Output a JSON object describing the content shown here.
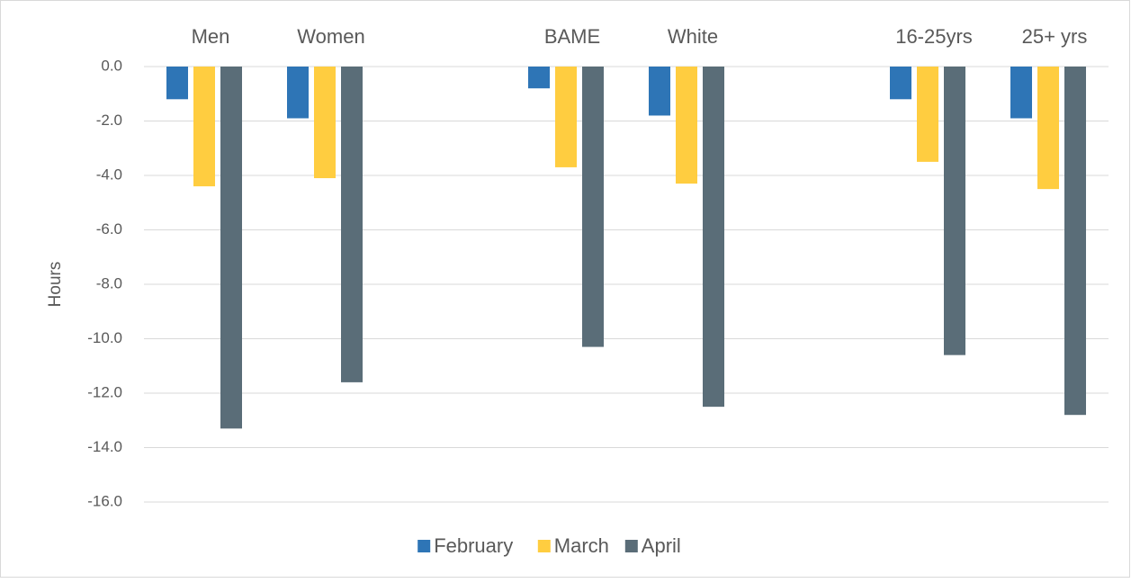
{
  "chart_data": {
    "type": "bar",
    "categories": [
      "Men",
      "Women",
      null,
      "BAME",
      "White",
      null,
      "16-25yrs",
      "25+ yrs"
    ],
    "series": [
      {
        "name": "February",
        "color": "#2e75b6",
        "values": [
          -1.2,
          -1.9,
          null,
          -0.8,
          -1.8,
          null,
          -1.2,
          -1.9
        ]
      },
      {
        "name": "March",
        "color": "#ffcd40",
        "values": [
          -4.4,
          -4.1,
          null,
          -3.7,
          -4.3,
          null,
          -3.5,
          -4.5
        ]
      },
      {
        "name": "April",
        "color": "#5a6d78",
        "values": [
          -13.3,
          -11.6,
          null,
          -10.3,
          -12.5,
          null,
          -10.6,
          -12.8
        ]
      }
    ],
    "y_label": "Hours",
    "ylim": [
      -16,
      0
    ],
    "yticks": [
      {
        "value": 0,
        "label": "0.0"
      },
      {
        "value": -2,
        "label": "-2.0"
      },
      {
        "value": -4,
        "label": "-4.0"
      },
      {
        "value": -6,
        "label": "-6.0"
      },
      {
        "value": -8,
        "label": "-8.0"
      },
      {
        "value": -10,
        "label": "-10.0"
      },
      {
        "value": -12,
        "label": "-12.0"
      },
      {
        "value": -14,
        "label": "-14.0"
      },
      {
        "value": -16,
        "label": "-16.0"
      }
    ],
    "grid": true,
    "legend": "bottom"
  }
}
